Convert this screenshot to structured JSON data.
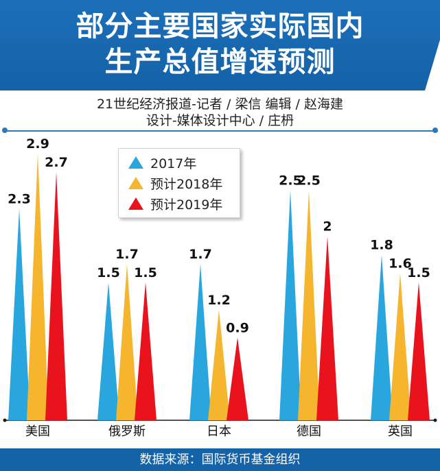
{
  "header": {
    "title_line1": "部分主要国家实际国内",
    "title_line2": "生产总值增速预测"
  },
  "credits": {
    "line1": "21世纪经济报道-记者 / 梁信   编辑 / 赵海建",
    "line2": "设计-媒体设计中心 / 庄枬"
  },
  "footer": {
    "source": "数据来源：国际货币基金组织"
  },
  "colors": {
    "banner": "#1462a8",
    "series_2017": "#2aa6de",
    "series_2018": "#f5b52e",
    "series_2019": "#e8131c"
  },
  "chart_data": {
    "type": "bar",
    "categories": [
      "美国",
      "俄罗斯",
      "日本",
      "德国",
      "英国"
    ],
    "series": [
      {
        "name": "2017年",
        "values": [
          2.3,
          1.5,
          1.7,
          2.5,
          1.8
        ]
      },
      {
        "name": "预计2018年",
        "values": [
          2.9,
          1.7,
          1.2,
          2.5,
          1.6
        ]
      },
      {
        "name": "预计2019年",
        "values": [
          2.7,
          1.5,
          0.9,
          2,
          1.5
        ]
      }
    ],
    "value_labels": [
      [
        "2.3",
        "1.5",
        "1.7",
        "2.5",
        "1.8"
      ],
      [
        "2.9",
        "1.7",
        "1.2",
        "2.5",
        "1.6"
      ],
      [
        "2.7",
        "1.5",
        "0.9",
        "2",
        "1.5"
      ]
    ],
    "title": "",
    "xlabel": "",
    "ylabel": "",
    "ylim": [
      0,
      2.9
    ],
    "grid": false,
    "legend_position": "top-left",
    "mark_shape": "triangle"
  }
}
